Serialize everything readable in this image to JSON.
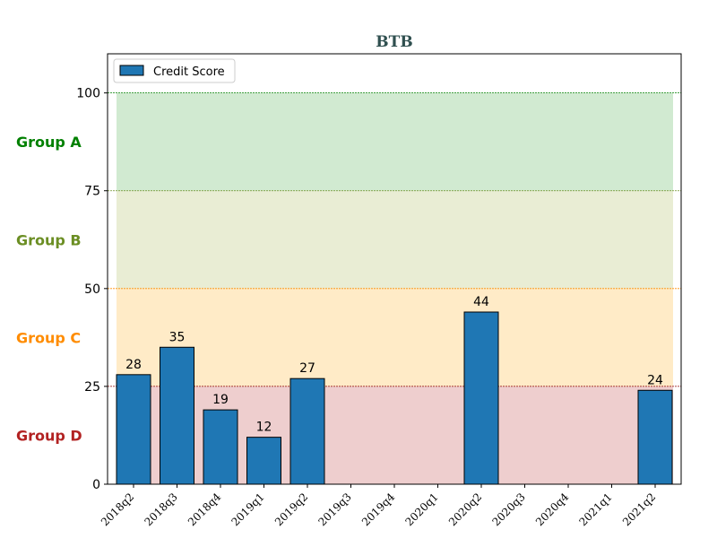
{
  "chart_data": {
    "type": "bar",
    "title": "BTB",
    "xlabel": "",
    "ylabel": "",
    "ylim": [
      0,
      110
    ],
    "yticks": [
      0,
      25,
      50,
      75,
      100
    ],
    "categories": [
      "2018q2",
      "2018q3",
      "2018q4",
      "2019q1",
      "2019q2",
      "2019q3",
      "2019q4",
      "2020q1",
      "2020q2",
      "2020q3",
      "2020q4",
      "2021q1",
      "2021q2"
    ],
    "series": [
      {
        "name": "Credit Score",
        "color": "#1f77b4",
        "values": [
          28,
          35,
          19,
          12,
          27,
          null,
          null,
          null,
          44,
          null,
          null,
          null,
          24
        ]
      }
    ],
    "legend": {
      "position": "top-left",
      "entries": [
        "Credit Score"
      ]
    },
    "bands": [
      {
        "label": "Group A",
        "from": 75,
        "to": 100,
        "color": "#2ca02c",
        "label_color": "#008000",
        "line_color": "#008000"
      },
      {
        "label": "Group B",
        "from": 50,
        "to": 75,
        "color": "#9aab3a",
        "label_color": "#6b8e23",
        "line_color": "#6b8e23"
      },
      {
        "label": "Group C",
        "from": 25,
        "to": 50,
        "color": "#ffa500",
        "label_color": "#ff8c00",
        "line_color": "#ff8c00"
      },
      {
        "label": "Group D",
        "from": 0,
        "to": 25,
        "color": "#b22222",
        "label_color": "#b22222",
        "line_color": "#8b0000"
      }
    ]
  }
}
